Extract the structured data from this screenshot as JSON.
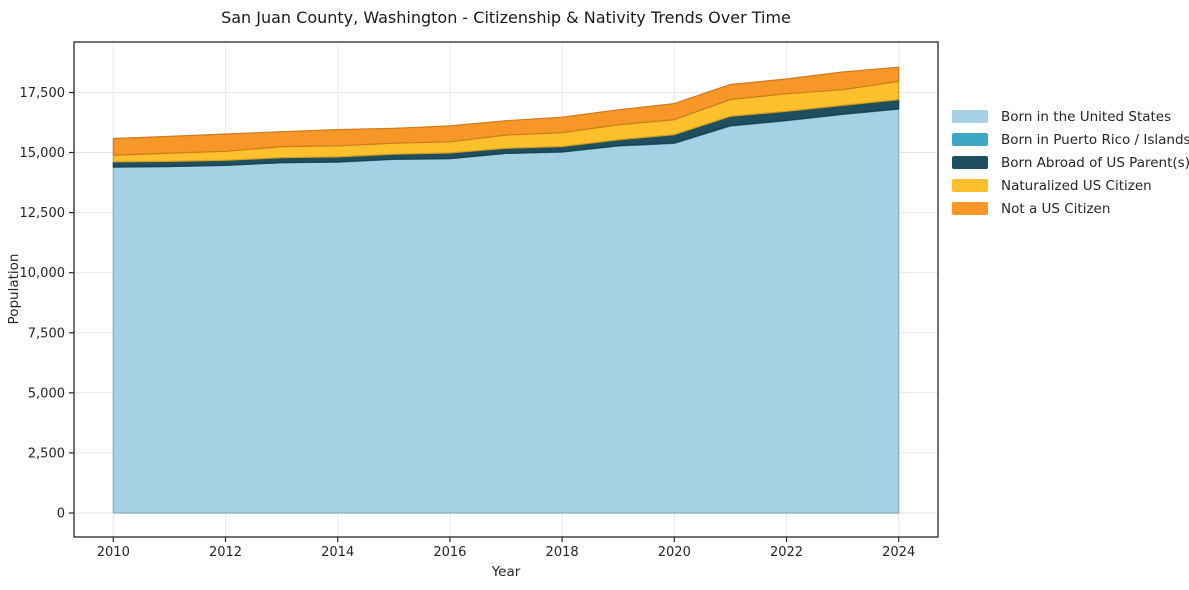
{
  "title": "San Juan County, Washington - Citizenship & Nativity Trends Over Time",
  "chart_data": {
    "type": "area",
    "stacked": true,
    "title": "San Juan County, Washington - Citizenship & Nativity Trends Over Time",
    "xlabel": "Year",
    "ylabel": "Population",
    "x": [
      2010,
      2011,
      2012,
      2013,
      2014,
      2015,
      2016,
      2017,
      2018,
      2019,
      2020,
      2021,
      2022,
      2023,
      2024
    ],
    "series": [
      {
        "name": "Born in the United States",
        "color": "#a6d0e4",
        "values": [
          14400,
          14420,
          14465,
          14575,
          14600,
          14715,
          14740,
          14965,
          15020,
          15270,
          15380,
          16100,
          16320,
          16585,
          16805
        ]
      },
      {
        "name": "Born in Puerto Rico / Islands",
        "color": "#3fa7c4",
        "values": [
          0,
          0,
          5,
          5,
          10,
          10,
          10,
          5,
          10,
          15,
          20,
          25,
          20,
          15,
          20
        ]
      },
      {
        "name": "Born Abroad of US Parent(s)",
        "color": "#1f4e5f",
        "values": [
          210,
          210,
          205,
          205,
          210,
          205,
          235,
          205,
          220,
          245,
          345,
          385,
          375,
          360,
          375
        ]
      },
      {
        "name": "Naturalized US Citizen",
        "color": "#fcc02d",
        "values": [
          275,
          345,
          375,
          460,
          460,
          460,
          460,
          555,
          580,
          625,
          625,
          695,
          735,
          655,
          765
        ]
      },
      {
        "name": "Not a US Citizen",
        "color": "#f79728",
        "values": [
          700,
          695,
          720,
          620,
          675,
          620,
          665,
          595,
          640,
          625,
          665,
          625,
          610,
          735,
          585
        ]
      }
    ],
    "xticks": [
      2010,
      2012,
      2014,
      2016,
      2018,
      2020,
      2022,
      2024
    ],
    "yticks": [
      0,
      2500,
      5000,
      7500,
      10000,
      12500,
      15000,
      17500
    ],
    "ytick_labels": [
      "0",
      "2,500",
      "5,000",
      "7,500",
      "10,000",
      "12,500",
      "15,000",
      "17,500"
    ],
    "xlim": [
      2009.3,
      2024.7
    ],
    "ylim": [
      -1000,
      19600
    ],
    "grid": true,
    "legend_position": "right-outside",
    "colors": {
      "grid": "#e9e9e9",
      "spine": "#262626",
      "tick_text": "#262626",
      "background": "#ffffff"
    }
  }
}
